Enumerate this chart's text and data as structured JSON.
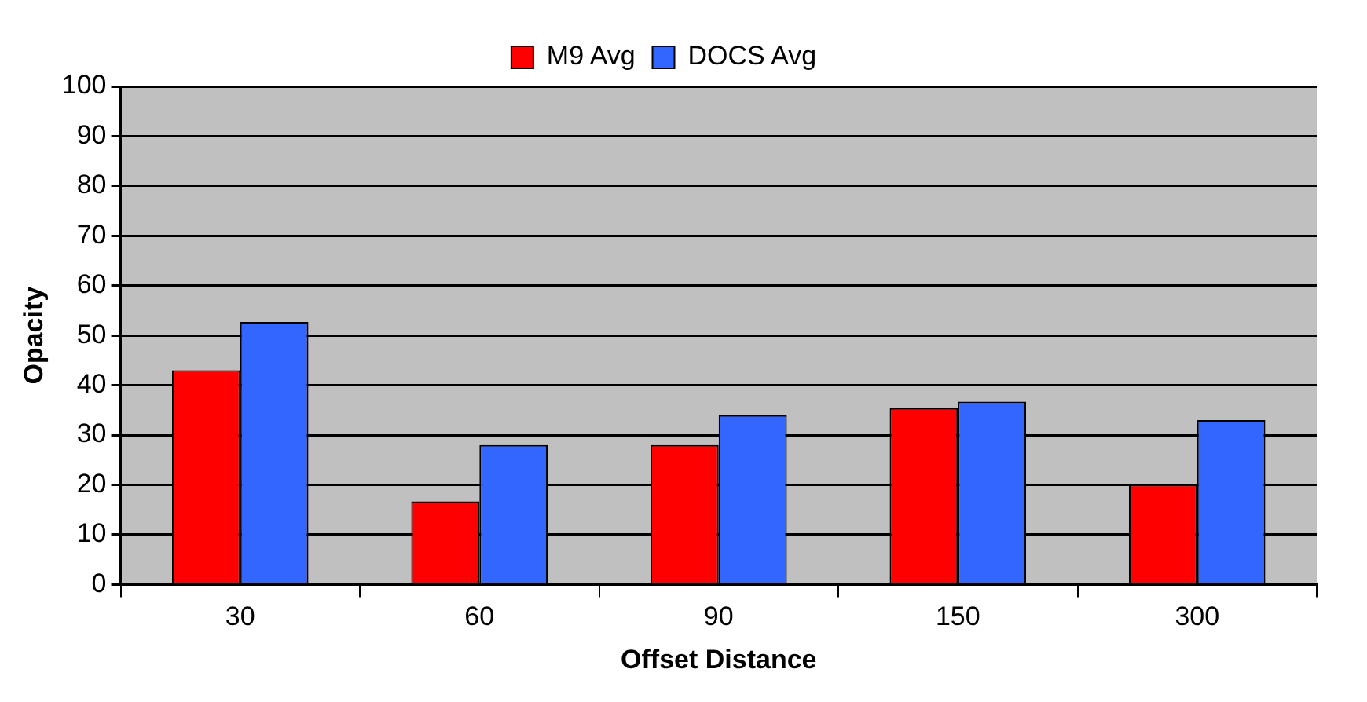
{
  "chart_data": {
    "type": "bar",
    "xlabel": "Offset Distance",
    "ylabel": "Opacity",
    "categories": [
      "30",
      "60",
      "90",
      "150",
      "300"
    ],
    "series": [
      {
        "name": "M9 Avg",
        "color": "#ff0000",
        "values": [
          43,
          16.7,
          28,
          35.4,
          20
        ]
      },
      {
        "name": "DOCS Avg",
        "color": "#3366ff",
        "values": [
          52.7,
          28,
          34,
          36.7,
          33
        ]
      }
    ],
    "ylim": [
      0,
      100
    ],
    "yticks": [
      0,
      10,
      20,
      30,
      40,
      50,
      60,
      70,
      80,
      90,
      100
    ],
    "grid": "y",
    "legend": "top"
  }
}
